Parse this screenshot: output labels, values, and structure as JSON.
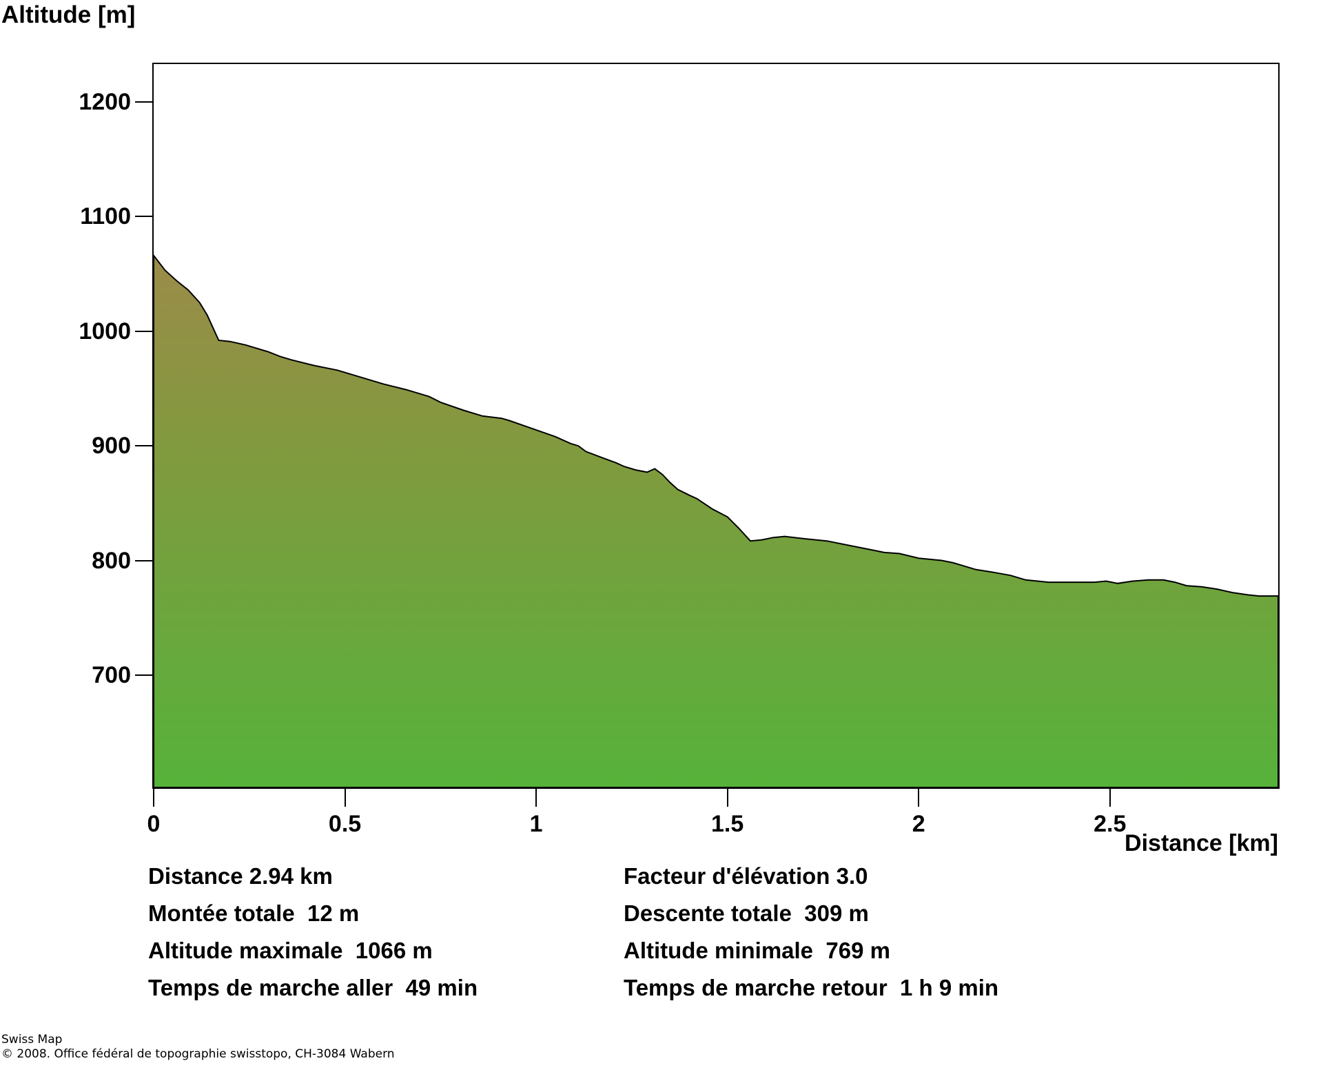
{
  "title": "Altitude [m]",
  "xaxis_title": "Distance [km]",
  "chart_data": {
    "type": "area",
    "title": "Altitude [m]",
    "xlabel": "Distance [km]",
    "ylabel": "Altitude [m]",
    "xlim": [
      0,
      2.94
    ],
    "ylim": [
      602,
      1233
    ],
    "yticks": [
      1200,
      1100,
      1000,
      900,
      800,
      700
    ],
    "xticks": [
      "0",
      "0.5",
      "1",
      "1.5",
      "2",
      "2.5"
    ],
    "grid": false,
    "legend": "none",
    "outline_color": "#000000",
    "axis_color": "#000000",
    "background_color": "#ffffff",
    "fill_gradient": {
      "from_alt": 1066,
      "stops": [
        {
          "offset": 0,
          "color": "#9c8b4a"
        },
        {
          "offset": 0.32,
          "color": "#84983f"
        },
        {
          "offset": 1,
          "color": "#56b23a"
        }
      ]
    },
    "points": [
      [
        0.0,
        1066
      ],
      [
        0.03,
        1053
      ],
      [
        0.06,
        1044
      ],
      [
        0.09,
        1036
      ],
      [
        0.12,
        1025
      ],
      [
        0.14,
        1014
      ],
      [
        0.17,
        992
      ],
      [
        0.2,
        991
      ],
      [
        0.24,
        988
      ],
      [
        0.3,
        982
      ],
      [
        0.33,
        978
      ],
      [
        0.36,
        975
      ],
      [
        0.42,
        970
      ],
      [
        0.48,
        966
      ],
      [
        0.54,
        960
      ],
      [
        0.6,
        954
      ],
      [
        0.66,
        949
      ],
      [
        0.72,
        943
      ],
      [
        0.75,
        938
      ],
      [
        0.81,
        931
      ],
      [
        0.86,
        926
      ],
      [
        0.91,
        924
      ],
      [
        0.93,
        922
      ],
      [
        0.99,
        915
      ],
      [
        1.05,
        908
      ],
      [
        1.09,
        902
      ],
      [
        1.11,
        900
      ],
      [
        1.13,
        895
      ],
      [
        1.17,
        890
      ],
      [
        1.21,
        885
      ],
      [
        1.23,
        882
      ],
      [
        1.26,
        879
      ],
      [
        1.29,
        877
      ],
      [
        1.31,
        880
      ],
      [
        1.33,
        875
      ],
      [
        1.35,
        868
      ],
      [
        1.37,
        862
      ],
      [
        1.4,
        857
      ],
      [
        1.42,
        854
      ],
      [
        1.46,
        845
      ],
      [
        1.5,
        838
      ],
      [
        1.53,
        828
      ],
      [
        1.56,
        817
      ],
      [
        1.59,
        818
      ],
      [
        1.62,
        820
      ],
      [
        1.65,
        821
      ],
      [
        1.7,
        819
      ],
      [
        1.76,
        817
      ],
      [
        1.82,
        813
      ],
      [
        1.88,
        809
      ],
      [
        1.91,
        807
      ],
      [
        1.95,
        806
      ],
      [
        2.0,
        802
      ],
      [
        2.06,
        800
      ],
      [
        2.09,
        798
      ],
      [
        2.12,
        795
      ],
      [
        2.15,
        792
      ],
      [
        2.19,
        790
      ],
      [
        2.24,
        787
      ],
      [
        2.28,
        783
      ],
      [
        2.34,
        781
      ],
      [
        2.4,
        781
      ],
      [
        2.46,
        781
      ],
      [
        2.49,
        782
      ],
      [
        2.52,
        780
      ],
      [
        2.56,
        782
      ],
      [
        2.6,
        783
      ],
      [
        2.64,
        783
      ],
      [
        2.67,
        781
      ],
      [
        2.7,
        778
      ],
      [
        2.74,
        777
      ],
      [
        2.78,
        775
      ],
      [
        2.82,
        772
      ],
      [
        2.86,
        770
      ],
      [
        2.89,
        769
      ],
      [
        2.94,
        769
      ]
    ]
  },
  "stats": {
    "rows": [
      {
        "left": "Distance 2.94 km",
        "right": "Facteur d'élévation 3.0"
      },
      {
        "left": "Montée totale  12 m",
        "right": "Descente totale  309 m"
      },
      {
        "left": "Altitude maximale  1066 m",
        "right": "Altitude minimale  769 m"
      },
      {
        "left": "Temps de marche aller  49 min",
        "right": "Temps de marche retour  1 h 9 min"
      }
    ]
  },
  "footer": {
    "line1": "Swiss Map",
    "line2": "© 2008. Office fédéral de topographie swisstopo, CH-3084 Wabern"
  }
}
